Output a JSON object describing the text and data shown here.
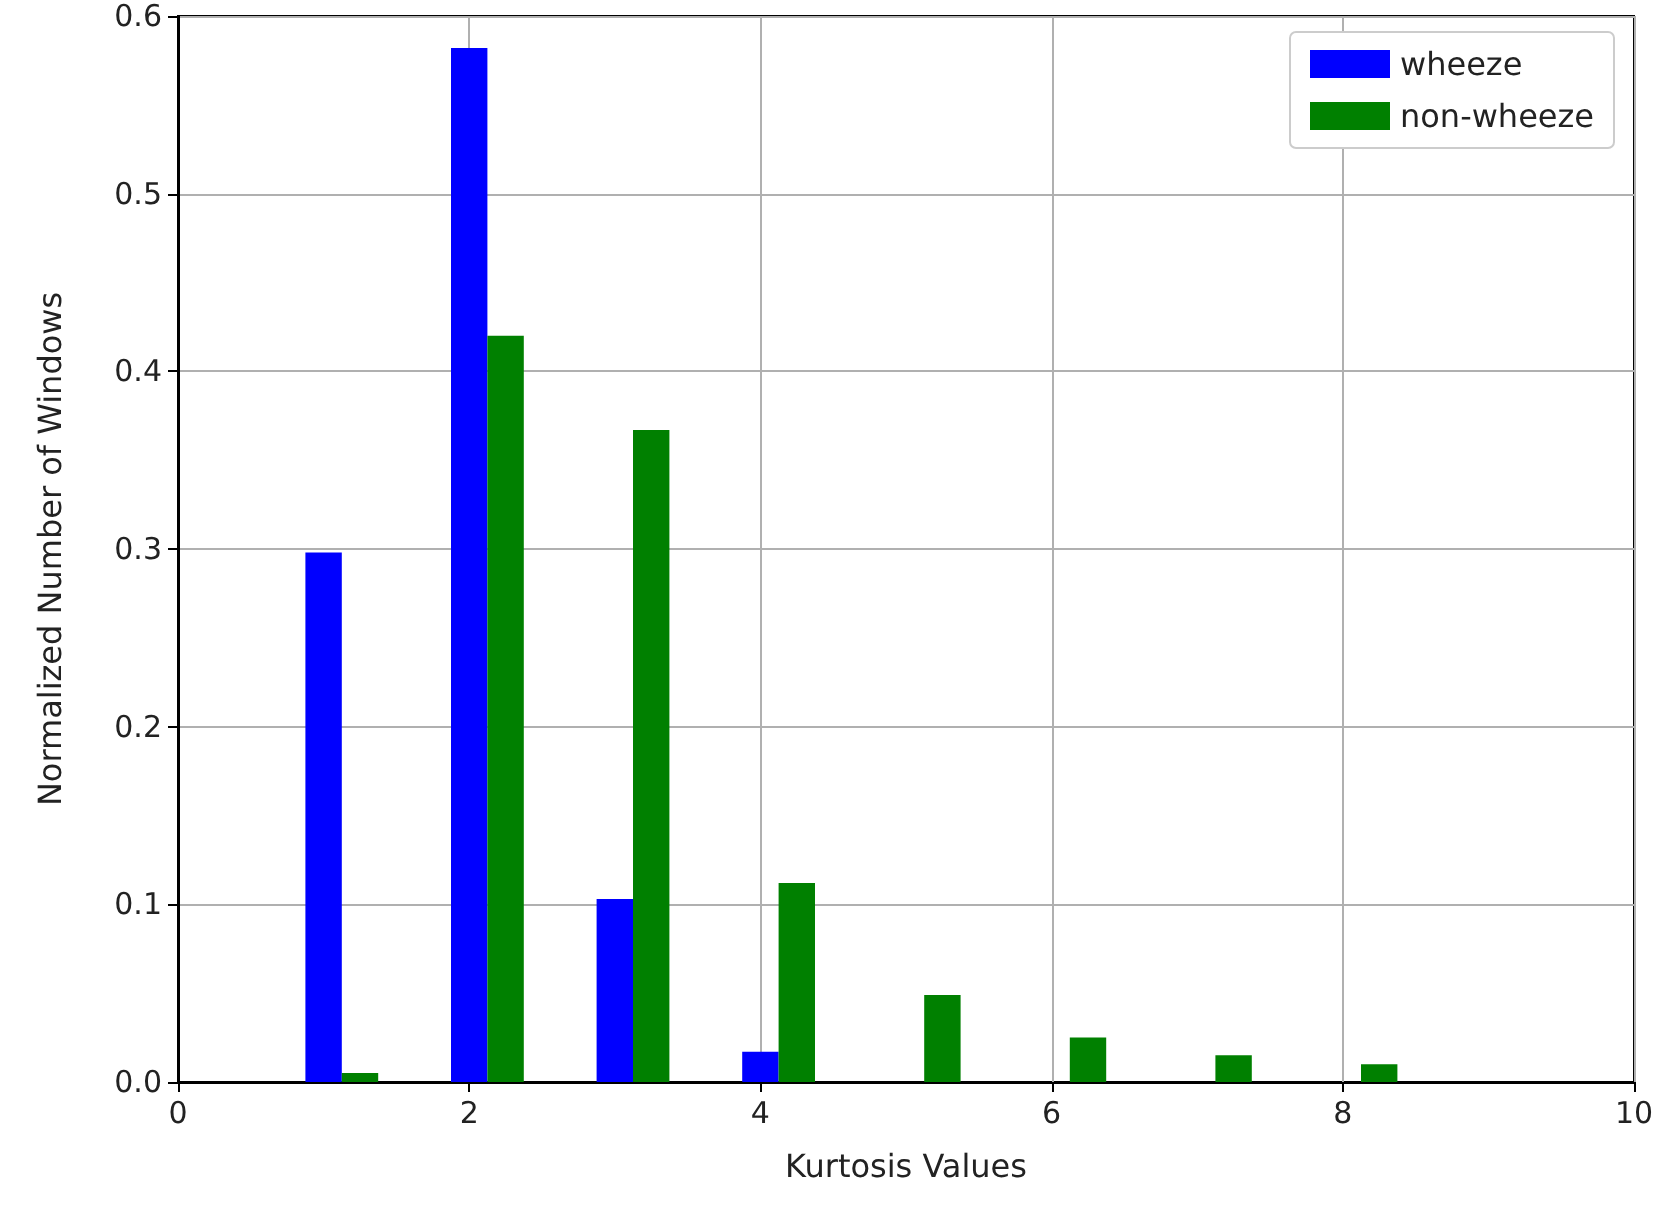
{
  "chart_data": {
    "type": "bar",
    "xlabel": "Kurtosis Values",
    "ylabel": "Normalized Number of Windows",
    "series": [
      {
        "name": "wheeze",
        "color": "#0000ff",
        "x": [
          1,
          2,
          3,
          4
        ],
        "values": [
          0.298,
          0.582,
          0.103,
          0.017
        ]
      },
      {
        "name": "non-wheeze",
        "color": "#008000",
        "x": [
          1.25,
          2.25,
          3.25,
          4.25,
          5.25,
          6.25,
          7.25,
          8.25
        ],
        "values": [
          0.005,
          0.42,
          0.367,
          0.112,
          0.049,
          0.025,
          0.015,
          0.01
        ]
      }
    ],
    "xlim": [
      0,
      10
    ],
    "xticks": [
      0,
      2,
      4,
      6,
      8,
      10
    ],
    "ylim": [
      0,
      0.6
    ],
    "yticks": [
      {
        "value": 0,
        "label": "0.0"
      },
      {
        "value": 0.1,
        "label": "0.1"
      },
      {
        "value": 0.2,
        "label": "0.2"
      },
      {
        "value": 0.3,
        "label": "0.3"
      },
      {
        "value": 0.4,
        "label": "0.4"
      },
      {
        "value": 0.5,
        "label": "0.5"
      },
      {
        "value": 0.6,
        "label": "0.6"
      }
    ],
    "grid": true,
    "legend": "top right"
  }
}
